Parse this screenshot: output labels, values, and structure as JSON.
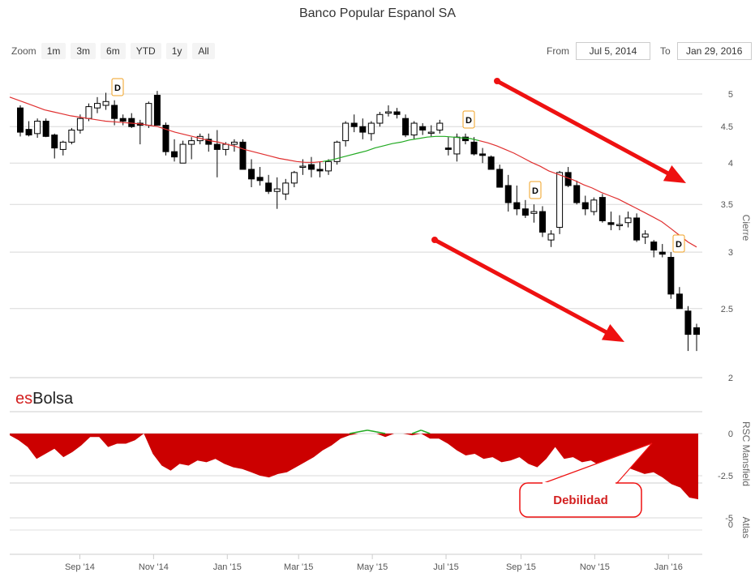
{
  "title": "Banco Popular Espanol SA",
  "zoom": {
    "label": "Zoom",
    "buttons": [
      "1m",
      "3m",
      "6m",
      "YTD",
      "1y",
      "All"
    ]
  },
  "range": {
    "from_label": "From",
    "from_value": "Jul 5, 2014",
    "to_label": "To",
    "to_value": "Jan 29, 2016"
  },
  "watermark": "esBolsa",
  "callout": "Debilidad",
  "dividend_marker": "D",
  "colors": {
    "candle": "#000000",
    "ma_red": "#e03030",
    "ma_green": "#22aa22",
    "rsc_area": "#cc0000",
    "arrow": "#ee1111",
    "marker_border": "#f0a020"
  },
  "chart_data": [
    {
      "type": "candlestick",
      "title": "Banco Popular Espanol SA",
      "ylabel": "Cierre",
      "y_scale": "log",
      "ylim": [
        2,
        5.3
      ],
      "yticks": [
        2,
        2.5,
        3,
        3.5,
        4,
        4.5,
        5
      ],
      "xticks": [
        "Sep '14",
        "Nov '14",
        "Jan '15",
        "Mar '15",
        "May '15",
        "Jul '15",
        "Sep '15",
        "Nov '15",
        "Jan '16"
      ],
      "grid": true,
      "series": [
        {
          "name": "",
          "type": "candles"
        },
        {
          "name": "",
          "type": "line"
        }
      ],
      "annotations": [
        "D",
        "D",
        "D",
        "D"
      ]
    },
    {
      "type": "area",
      "ylabel": "RSC Mansfield",
      "ylim": [
        -5,
        1
      ],
      "yticks": [
        0,
        -2.5,
        -5
      ],
      "values": [
        -0.1,
        -0.4,
        -0.8,
        -1.5,
        -1.2,
        -0.9,
        -1.4,
        -1.1,
        -0.7,
        -0.2,
        -0.2,
        -0.8,
        -0.6,
        -0.6,
        -0.4,
        0,
        -1.2,
        -1.9,
        -2.2,
        -1.8,
        -1.9,
        -1.6,
        -1.7,
        -1.5,
        -1.8,
        -2.0,
        -2.1,
        -2.3,
        -2.5,
        -2.6,
        -2.4,
        -2.3,
        -2.0,
        -1.7,
        -1.4,
        -1.0,
        -0.7,
        -0.3,
        -0.1,
        0.1,
        0.2,
        0.1,
        -0.2,
        0,
        0,
        -0.1,
        0.2,
        -0.3,
        -0.3,
        -0.6,
        -1.0,
        -1.3,
        -1.2,
        -1.5,
        -1.4,
        -1.7,
        -1.6,
        -1.4,
        -1.8,
        -2.0,
        -1.5,
        -0.8,
        -1.5,
        -1.4,
        -1.7,
        -1.6,
        -1.9,
        -2.0,
        -1.8,
        -2.0,
        -2.2,
        -2.4,
        -2.3,
        -2.6,
        -3.0,
        -3.2,
        -3.8,
        -3.9
      ]
    },
    {
      "type": "line",
      "ylabel": "Atlas",
      "yticks": [
        0
      ]
    }
  ]
}
